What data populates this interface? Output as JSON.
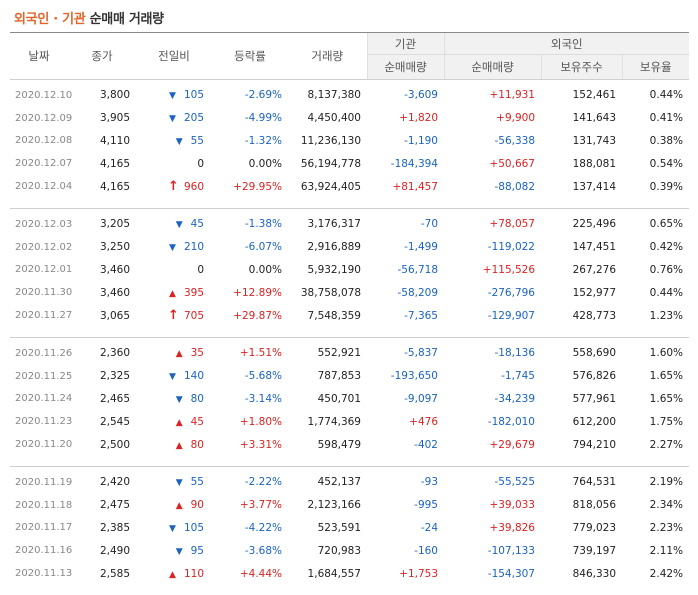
{
  "title": {
    "highlight": "외국인 · 기관",
    "rest": "순매매 거래량"
  },
  "headers": {
    "date": "날짜",
    "close": "종가",
    "change": "전일비",
    "rate": "등락률",
    "volume": "거래량",
    "inst_group": "기관",
    "inst_net": "순매매량",
    "foreign_group": "외국인",
    "foreign_net": "순매매량",
    "foreign_hold": "보유주수",
    "foreign_ratio": "보유율"
  },
  "groups": [
    [
      {
        "date": "2020.12.10",
        "close": "3,800",
        "dir": "down",
        "arrow": "▼",
        "change": "105",
        "rate": "-2.69%",
        "volume": "8,137,380",
        "inst": "-3,609",
        "inst_dir": "down",
        "foreign": "+11,931",
        "foreign_dir": "up",
        "hold": "152,461",
        "ratio": "0.44%"
      },
      {
        "date": "2020.12.09",
        "close": "3,905",
        "dir": "down",
        "arrow": "▼",
        "change": "205",
        "rate": "-4.99%",
        "volume": "4,450,400",
        "inst": "+1,820",
        "inst_dir": "up",
        "foreign": "+9,900",
        "foreign_dir": "up",
        "hold": "141,643",
        "ratio": "0.41%"
      },
      {
        "date": "2020.12.08",
        "close": "4,110",
        "dir": "down",
        "arrow": "▼",
        "change": "55",
        "rate": "-1.32%",
        "volume": "11,236,130",
        "inst": "-1,190",
        "inst_dir": "down",
        "foreign": "-56,338",
        "foreign_dir": "down",
        "hold": "131,743",
        "ratio": "0.38%"
      },
      {
        "date": "2020.12.07",
        "close": "4,165",
        "dir": "flat",
        "arrow": "",
        "change": "0",
        "rate": "0.00%",
        "volume": "56,194,778",
        "inst": "-184,394",
        "inst_dir": "down",
        "foreign": "+50,667",
        "foreign_dir": "up",
        "hold": "188,081",
        "ratio": "0.54%"
      },
      {
        "date": "2020.12.04",
        "close": "4,165",
        "dir": "limit",
        "arrow": "↑",
        "change": "960",
        "rate": "+29.95%",
        "volume": "63,924,405",
        "inst": "+81,457",
        "inst_dir": "up",
        "foreign": "-88,082",
        "foreign_dir": "down",
        "hold": "137,414",
        "ratio": "0.39%"
      }
    ],
    [
      {
        "date": "2020.12.03",
        "close": "3,205",
        "dir": "down",
        "arrow": "▼",
        "change": "45",
        "rate": "-1.38%",
        "volume": "3,176,317",
        "inst": "-70",
        "inst_dir": "down",
        "foreign": "+78,057",
        "foreign_dir": "up",
        "hold": "225,496",
        "ratio": "0.65%"
      },
      {
        "date": "2020.12.02",
        "close": "3,250",
        "dir": "down",
        "arrow": "▼",
        "change": "210",
        "rate": "-6.07%",
        "volume": "2,916,889",
        "inst": "-1,499",
        "inst_dir": "down",
        "foreign": "-119,022",
        "foreign_dir": "down",
        "hold": "147,451",
        "ratio": "0.42%"
      },
      {
        "date": "2020.12.01",
        "close": "3,460",
        "dir": "flat",
        "arrow": "",
        "change": "0",
        "rate": "0.00%",
        "volume": "5,932,190",
        "inst": "-56,718",
        "inst_dir": "down",
        "foreign": "+115,526",
        "foreign_dir": "up",
        "hold": "267,276",
        "ratio": "0.76%"
      },
      {
        "date": "2020.11.30",
        "close": "3,460",
        "dir": "up",
        "arrow": "▲",
        "change": "395",
        "rate": "+12.89%",
        "volume": "38,758,078",
        "inst": "-58,209",
        "inst_dir": "down",
        "foreign": "-276,796",
        "foreign_dir": "down",
        "hold": "152,977",
        "ratio": "0.44%"
      },
      {
        "date": "2020.11.27",
        "close": "3,065",
        "dir": "limit",
        "arrow": "↑",
        "change": "705",
        "rate": "+29.87%",
        "volume": "7,548,359",
        "inst": "-7,365",
        "inst_dir": "down",
        "foreign": "-129,907",
        "foreign_dir": "down",
        "hold": "428,773",
        "ratio": "1.23%"
      }
    ],
    [
      {
        "date": "2020.11.26",
        "close": "2,360",
        "dir": "up",
        "arrow": "▲",
        "change": "35",
        "rate": "+1.51%",
        "volume": "552,921",
        "inst": "-5,837",
        "inst_dir": "down",
        "foreign": "-18,136",
        "foreign_dir": "down",
        "hold": "558,690",
        "ratio": "1.60%"
      },
      {
        "date": "2020.11.25",
        "close": "2,325",
        "dir": "down",
        "arrow": "▼",
        "change": "140",
        "rate": "-5.68%",
        "volume": "787,853",
        "inst": "-193,650",
        "inst_dir": "down",
        "foreign": "-1,745",
        "foreign_dir": "down",
        "hold": "576,826",
        "ratio": "1.65%"
      },
      {
        "date": "2020.11.24",
        "close": "2,465",
        "dir": "down",
        "arrow": "▼",
        "change": "80",
        "rate": "-3.14%",
        "volume": "450,701",
        "inst": "-9,097",
        "inst_dir": "down",
        "foreign": "-34,239",
        "foreign_dir": "down",
        "hold": "577,961",
        "ratio": "1.65%"
      },
      {
        "date": "2020.11.23",
        "close": "2,545",
        "dir": "up",
        "arrow": "▲",
        "change": "45",
        "rate": "+1.80%",
        "volume": "1,774,369",
        "inst": "+476",
        "inst_dir": "up",
        "foreign": "-182,010",
        "foreign_dir": "down",
        "hold": "612,200",
        "ratio": "1.75%"
      },
      {
        "date": "2020.11.20",
        "close": "2,500",
        "dir": "up",
        "arrow": "▲",
        "change": "80",
        "rate": "+3.31%",
        "volume": "598,479",
        "inst": "-402",
        "inst_dir": "down",
        "foreign": "+29,679",
        "foreign_dir": "up",
        "hold": "794,210",
        "ratio": "2.27%"
      }
    ],
    [
      {
        "date": "2020.11.19",
        "close": "2,420",
        "dir": "down",
        "arrow": "▼",
        "change": "55",
        "rate": "-2.22%",
        "volume": "452,137",
        "inst": "-93",
        "inst_dir": "down",
        "foreign": "-55,525",
        "foreign_dir": "down",
        "hold": "764,531",
        "ratio": "2.19%"
      },
      {
        "date": "2020.11.18",
        "close": "2,475",
        "dir": "up",
        "arrow": "▲",
        "change": "90",
        "rate": "+3.77%",
        "volume": "2,123,166",
        "inst": "-995",
        "inst_dir": "down",
        "foreign": "+39,033",
        "foreign_dir": "up",
        "hold": "818,056",
        "ratio": "2.34%"
      },
      {
        "date": "2020.11.17",
        "close": "2,385",
        "dir": "down",
        "arrow": "▼",
        "change": "105",
        "rate": "-4.22%",
        "volume": "523,591",
        "inst": "-24",
        "inst_dir": "down",
        "foreign": "+39,826",
        "foreign_dir": "up",
        "hold": "779,023",
        "ratio": "2.23%"
      },
      {
        "date": "2020.11.16",
        "close": "2,490",
        "dir": "down",
        "arrow": "▼",
        "change": "95",
        "rate": "-3.68%",
        "volume": "720,983",
        "inst": "-160",
        "inst_dir": "down",
        "foreign": "-107,133",
        "foreign_dir": "down",
        "hold": "739,197",
        "ratio": "2.11%"
      },
      {
        "date": "2020.11.13",
        "close": "2,585",
        "dir": "up",
        "arrow": "▲",
        "change": "110",
        "rate": "+4.44%",
        "volume": "1,684,557",
        "inst": "+1,753",
        "inst_dir": "up",
        "foreign": "-154,307",
        "foreign_dir": "down",
        "hold": "846,330",
        "ratio": "2.42%"
      }
    ]
  ]
}
